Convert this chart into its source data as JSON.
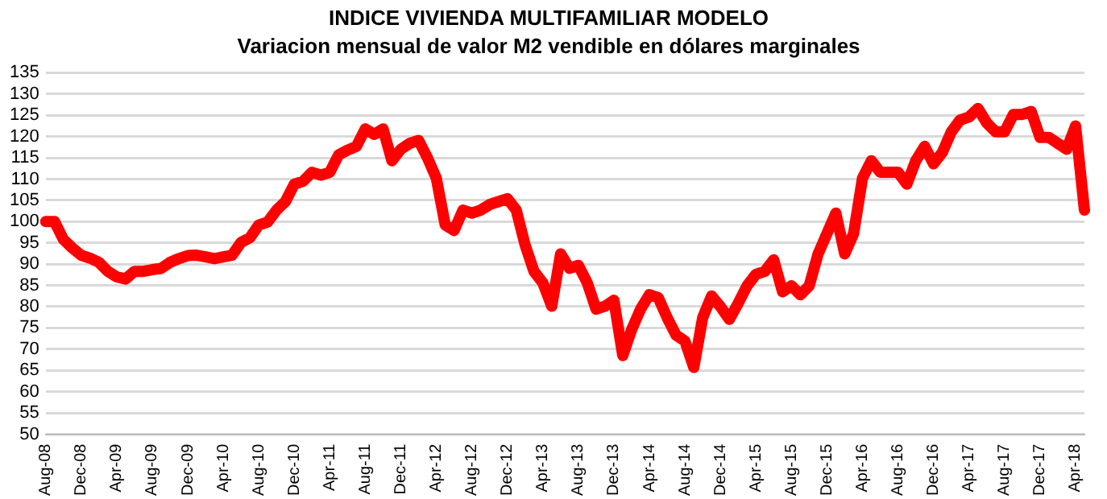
{
  "chart_data": {
    "type": "line",
    "title": "INDICE VIVIENDA MULTIFAMILIAR MODELO",
    "subtitle": "Variacion mensual de valor M2 vendible en dólares marginales",
    "categories": [
      "Aug-08",
      null,
      null,
      null,
      "Dec-08",
      null,
      null,
      null,
      "Apr-09",
      null,
      null,
      null,
      "Aug-09",
      null,
      null,
      null,
      "Dec-09",
      null,
      null,
      null,
      "Apr-10",
      null,
      null,
      null,
      "Aug-10",
      null,
      null,
      null,
      "Dec-10",
      null,
      null,
      null,
      "Apr-11",
      null,
      null,
      null,
      "Aug-11",
      null,
      null,
      null,
      "Dec-11",
      null,
      null,
      null,
      "Apr-12",
      null,
      null,
      null,
      "Aug-12",
      null,
      null,
      null,
      "Dec-12",
      null,
      null,
      null,
      "Apr-13",
      null,
      null,
      null,
      "Aug-13",
      null,
      null,
      null,
      "Dec-13",
      null,
      null,
      null,
      "Apr-14",
      null,
      null,
      null,
      "Aug-14",
      null,
      null,
      null,
      "Dec-14",
      null,
      null,
      null,
      "Apr-15",
      null,
      null,
      null,
      "Aug-15",
      null,
      null,
      null,
      "Dec-15",
      null,
      null,
      null,
      "Apr-16",
      null,
      null,
      null,
      "Aug-16",
      null,
      null,
      null,
      "Dec-16",
      null,
      null,
      null,
      "Apr-17",
      null,
      null,
      null,
      "Aug-17",
      null,
      null,
      null,
      "Dec-17",
      null,
      null,
      null,
      "Apr-18",
      null
    ],
    "series": [
      {
        "color": "#ff0000",
        "values": [
          100,
          100,
          95.8,
          93.8,
          92.1,
          91.4,
          90.4,
          88.3,
          87,
          86.5,
          88.3,
          88.3,
          88.7,
          89,
          90.4,
          91.3,
          92,
          92.1,
          91.7,
          91.3,
          91.7,
          92.1,
          95.1,
          96.2,
          99.2,
          99.9,
          102.7,
          104.7,
          108.8,
          109.5,
          111.6,
          110.9,
          111.6,
          115.7,
          116.8,
          117.7,
          121.8,
          120.5,
          121.8,
          114.3,
          117,
          118.4,
          119.1,
          115,
          110.2,
          99.2,
          97.9,
          102.7,
          102,
          102.7,
          104,
          104.7,
          105.4,
          102.7,
          94.5,
          88.3,
          85.6,
          80.1,
          92.4,
          89,
          89.7,
          85.6,
          79.4,
          80.1,
          81.5,
          68.5,
          74.6,
          79.4,
          82.8,
          82.1,
          77.4,
          73.3,
          71.9,
          65.7,
          77.4,
          82.5,
          80,
          77,
          80.8,
          84.9,
          87.6,
          88.3,
          91,
          83.5,
          84.9,
          82.8,
          84.9,
          92.4,
          97.2,
          102,
          92.4,
          97.2,
          110.2,
          114.3,
          111.6,
          111.6,
          111.6,
          108.8,
          114.3,
          117.7,
          113.6,
          116.3,
          121.1,
          123.9,
          124.6,
          126.6,
          123.2,
          121.1,
          121.1,
          125.2,
          125.2,
          125.9,
          119.8,
          119.8,
          118.4,
          117,
          122.5,
          102.7
        ]
      }
    ],
    "ylim": [
      50,
      135
    ],
    "yticks": [
      50,
      55,
      60,
      65,
      70,
      75,
      80,
      85,
      90,
      95,
      100,
      105,
      110,
      115,
      120,
      125,
      130,
      135
    ],
    "grid": "y",
    "legend": false
  }
}
